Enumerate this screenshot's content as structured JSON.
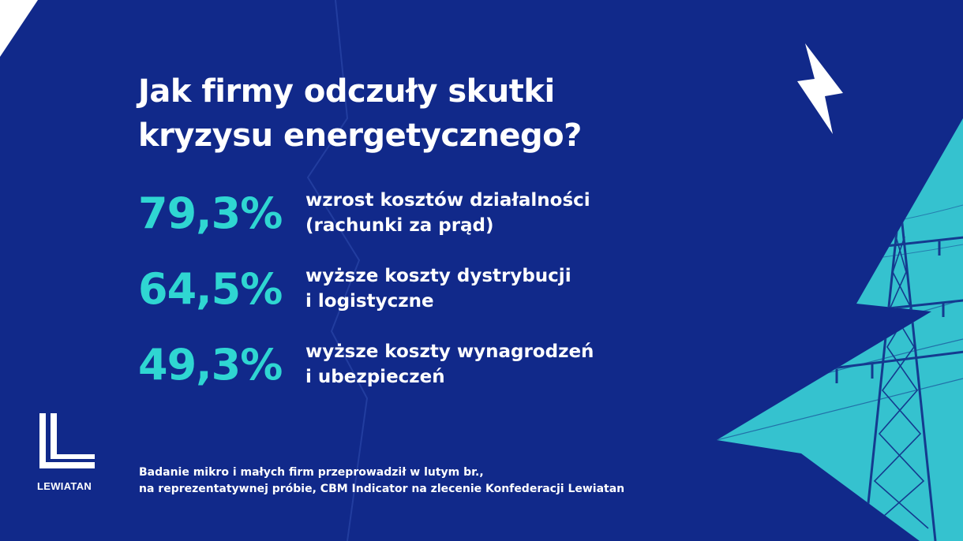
{
  "headline": {
    "line1": "Jak firmy odczuły skutki",
    "line2": "kryzysu energetycznego?"
  },
  "stats": [
    {
      "percent": "79,3%",
      "line1": "wzrost kosztów działalności",
      "line2": "(rachunki za prąd)"
    },
    {
      "percent": "64,5%",
      "line1": "wyższe  koszty dystrybucji",
      "line2": "i logistyczne"
    },
    {
      "percent": "49,3%",
      "line1": "wyższe koszty wynagrodzeń",
      "line2": "i ubezpieczeń"
    }
  ],
  "footnote": {
    "line1": "Badanie mikro i małych firm przeprowadził w lutym br.,",
    "line2": "na reprezentatywnej próbie, CBM Indicator na zlecenie Konfederacji Lewiatan"
  },
  "logo": {
    "name": "LEWIATAN"
  },
  "colors": {
    "background": "#11298a",
    "accent": "#2fd6d2",
    "text": "#ffffff"
  }
}
